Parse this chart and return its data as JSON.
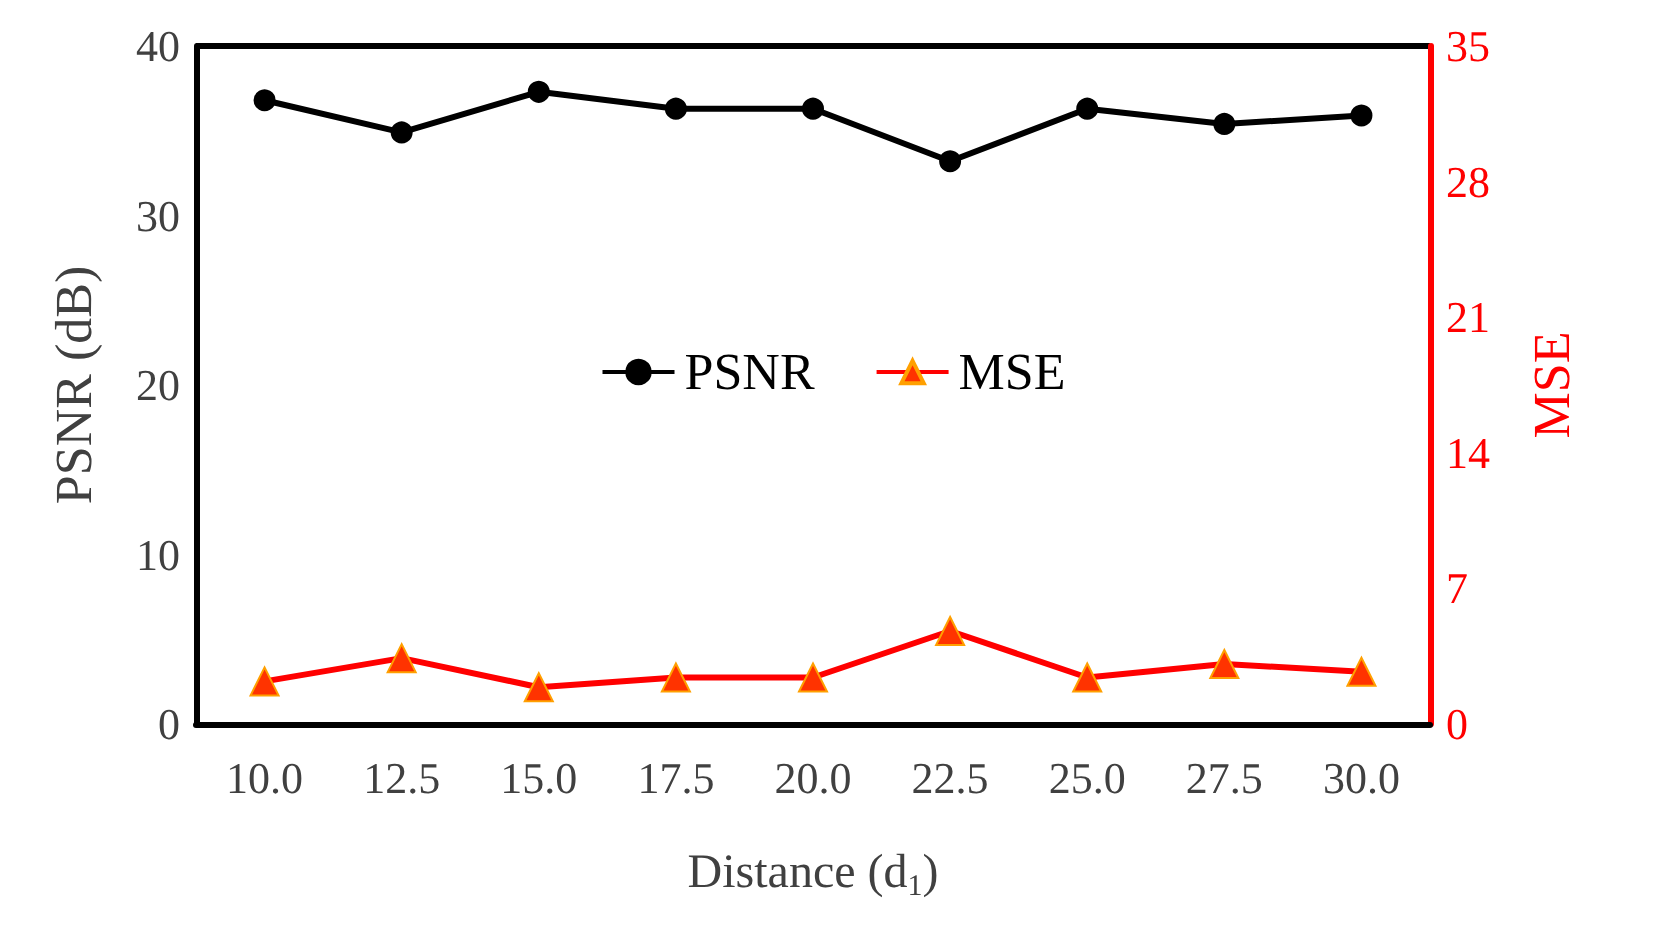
{
  "chart_data": {
    "type": "line",
    "xlabel": "Distance (d$_{1}$)",
    "ylabel": "PSNR (dB)",
    "y2label": "MSE",
    "categories": [
      "10.0",
      "12.5",
      "15.0",
      "17.5",
      "20.0",
      "22.5",
      "25.0",
      "27.5",
      "30.0"
    ],
    "series": [
      {
        "name": "PSNR",
        "color": "#000000",
        "marker": "circle",
        "values": [
          36.8,
          34.9,
          37.3,
          36.3,
          36.3,
          33.2,
          36.3,
          35.4,
          35.9
        ]
      },
      {
        "name": "MSE",
        "color": "#ff0000",
        "marker": "triangle",
        "axis": "y2",
        "values": [
          2.2,
          3.4,
          1.9,
          2.4,
          2.4,
          4.8,
          2.4,
          3.1,
          2.7
        ]
      }
    ],
    "ylim": [
      0,
      40
    ],
    "yticks": [
      0,
      10,
      20,
      30,
      40
    ],
    "y2lim": [
      0,
      35
    ],
    "y2ticks": [
      0,
      7,
      14,
      21,
      28,
      35
    ],
    "legend": "center",
    "grid": false
  }
}
